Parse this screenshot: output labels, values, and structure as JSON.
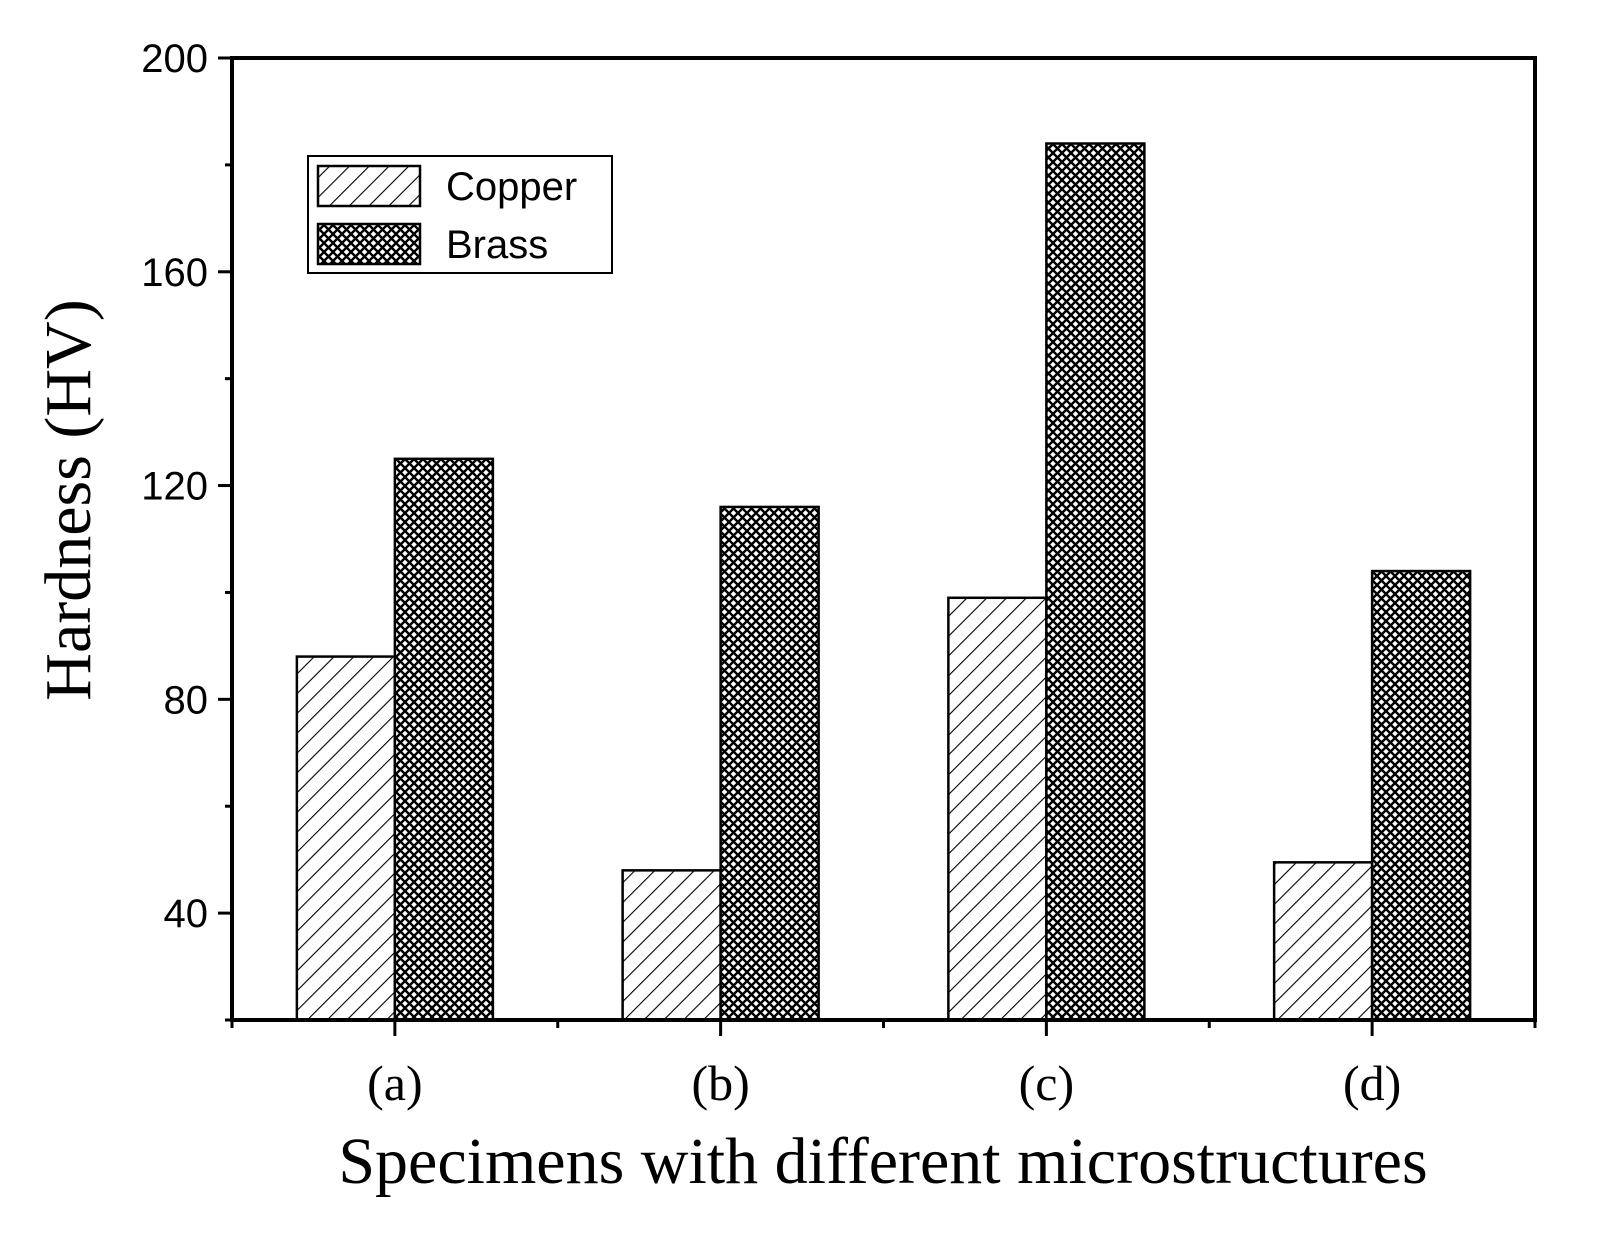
{
  "chart_data": {
    "type": "bar",
    "title": "",
    "xlabel": "Specimens with different microstructures",
    "ylabel": "Hardness (HV)",
    "categories": [
      "(a)",
      "(b)",
      "(c)",
      "(d)"
    ],
    "series": [
      {
        "name": "Copper",
        "pattern": "diagonal-hatch",
        "values": [
          88,
          48,
          99,
          49.5
        ]
      },
      {
        "name": "Brass",
        "pattern": "crosshatch",
        "values": [
          125,
          116,
          184,
          104
        ]
      }
    ],
    "ylim": [
      20,
      200
    ],
    "yticks": [
      40,
      80,
      120,
      160,
      200
    ],
    "ytick_labels": [
      "40",
      "80",
      "120",
      "160",
      "200"
    ],
    "legend_position": "top-left",
    "grid": false,
    "colors": {
      "axis": "#000000",
      "fill": "#ffffff",
      "hatch": "#000000"
    }
  }
}
